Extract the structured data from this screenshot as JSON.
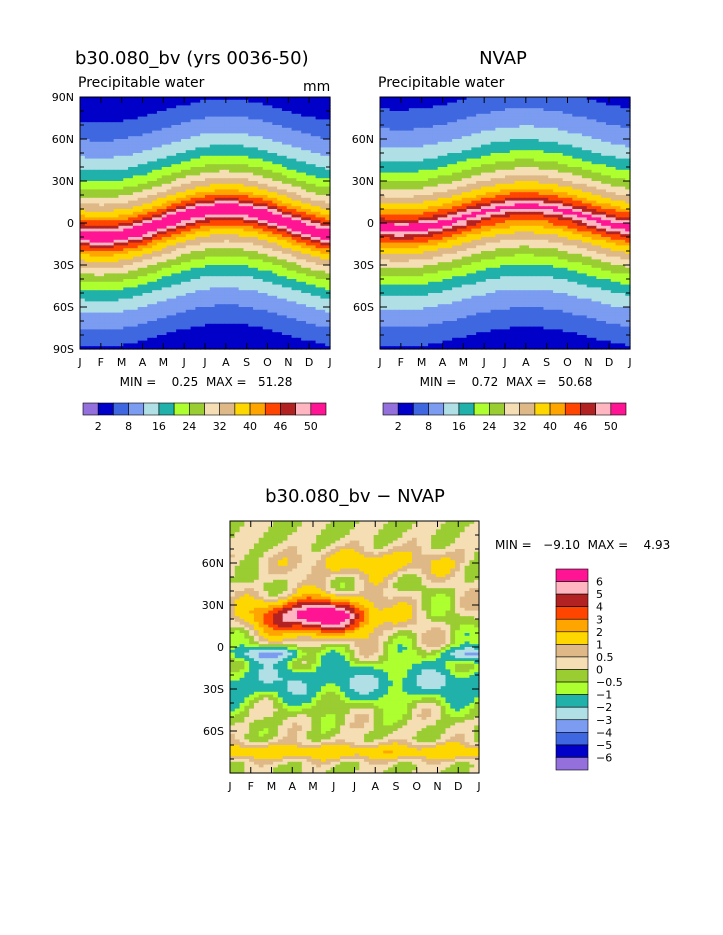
{
  "chart_data": [
    {
      "type": "heatmap",
      "title": "b30.080_bv (yrs 0036-50)",
      "subtitle": "Precipitable water",
      "units": "mm",
      "min_max_label": "MIN =    0.25  MAX =   51.28",
      "x_ticks": [
        "J",
        "F",
        "M",
        "A",
        "M",
        "J",
        "J",
        "A",
        "S",
        "O",
        "N",
        "D",
        "J"
      ],
      "y_ticks": [
        "90N",
        "60N",
        "30N",
        "0",
        "30S",
        "60S",
        "90S"
      ],
      "ylim": [
        -90,
        90
      ],
      "colorbar_labels": [
        "2",
        "8",
        "16",
        "24",
        "32",
        "40",
        "46",
        "50"
      ],
      "colorbar_colors": [
        "#9370db",
        "#0000c8",
        "#3f68e0",
        "#7b9cf0",
        "#b0e0e6",
        "#20b2aa",
        "#adff2f",
        "#9acd32",
        "#f5deb3",
        "#deb887",
        "#ffd700",
        "#ffa500",
        "#ff4500",
        "#b22222",
        "#ffb6c1",
        "#ff1493"
      ],
      "levels": [
        2,
        5,
        8,
        12,
        16,
        20,
        24,
        28,
        32,
        36,
        40,
        43,
        46,
        48,
        50
      ],
      "params": {
        "eq_lat": 0,
        "eq_amp": 10,
        "peak": 50,
        "eq_width": 13,
        "decay": 1.2,
        "pole_n": 3,
        "pole_s": 3
      }
    },
    {
      "type": "heatmap",
      "title": "NVAP",
      "subtitle": "Precipitable water",
      "min_max_label": "MIN =    0.72  MAX =   50.68",
      "x_ticks": [
        "J",
        "F",
        "M",
        "A",
        "M",
        "J",
        "J",
        "A",
        "S",
        "O",
        "N",
        "D",
        "J"
      ],
      "y_ticks": [
        "60N",
        "30N",
        "0",
        "30S",
        "60S"
      ],
      "ylim": [
        -90,
        90
      ],
      "colorbar_labels": [
        "2",
        "8",
        "16",
        "24",
        "32",
        "40",
        "46",
        "50"
      ],
      "colorbar_colors": [
        "#9370db",
        "#0000c8",
        "#3f68e0",
        "#7b9cf0",
        "#b0e0e6",
        "#20b2aa",
        "#adff2f",
        "#9acd32",
        "#f5deb3",
        "#deb887",
        "#ffd700",
        "#ffa500",
        "#ff4500",
        "#b22222",
        "#ffb6c1",
        "#ff1493"
      ],
      "levels": [
        2,
        5,
        8,
        12,
        16,
        20,
        24,
        28,
        32,
        36,
        40,
        43,
        46,
        48,
        50
      ],
      "params": {
        "eq_lat": 4,
        "eq_amp": 8,
        "peak": 50,
        "eq_width": 14,
        "decay": 1.2,
        "pole_n": 1,
        "pole_s": 2
      }
    },
    {
      "type": "heatmap",
      "title": "b30.080_bv − NVAP",
      "min_max_label": "MIN =   −9.10  MAX =    4.93",
      "x_ticks": [
        "J",
        "F",
        "M",
        "A",
        "M",
        "J",
        "J",
        "A",
        "S",
        "O",
        "N",
        "D",
        "J"
      ],
      "y_ticks": [
        "60N",
        "30N",
        "0",
        "30S",
        "60S"
      ],
      "ylim": [
        -90,
        90
      ],
      "colorbar_labels": [
        "6",
        "5",
        "4",
        "3",
        "2",
        "1",
        "0.5",
        "0",
        "−0.5",
        "−1",
        "−2",
        "−3",
        "−4",
        "−5",
        "−6"
      ],
      "colorbar_colors": [
        "#ff1493",
        "#ffb6c1",
        "#b22222",
        "#ff4500",
        "#ffa500",
        "#ffd700",
        "#deb887",
        "#f5deb3",
        "#9acd32",
        "#adff2f",
        "#20b2aa",
        "#b0e0e6",
        "#7b9cf0",
        "#3f68e0",
        "#0000c8",
        "#9370db"
      ],
      "levels": [
        -6,
        -5,
        -4,
        -3,
        -2,
        -1,
        -0.5,
        0,
        0.5,
        1,
        2,
        3,
        4,
        5,
        6
      ]
    }
  ]
}
